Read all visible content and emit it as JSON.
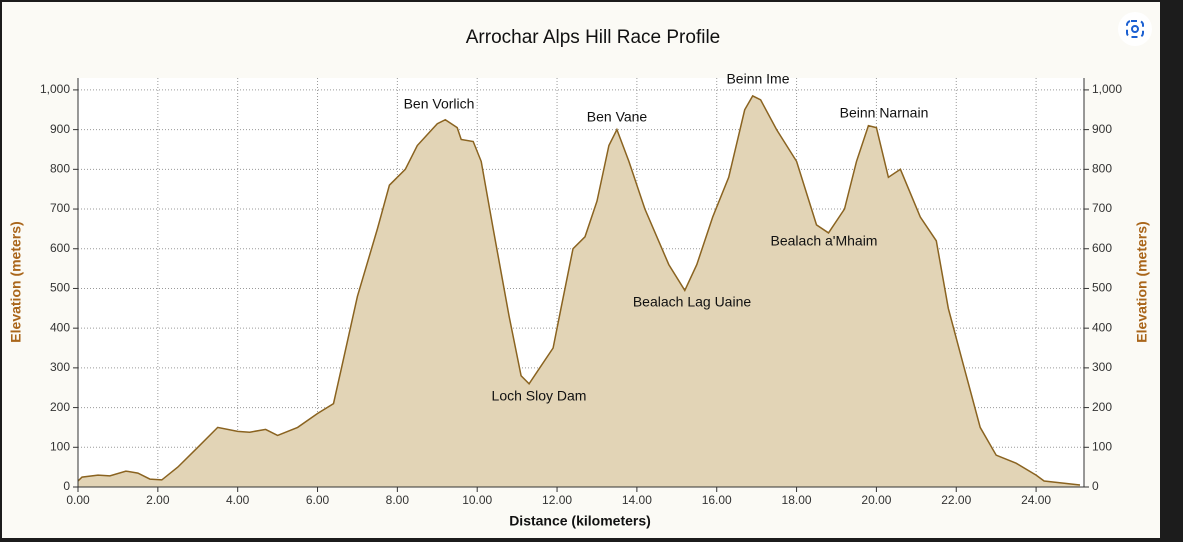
{
  "chart_data": {
    "type": "area",
    "title": "Arrochar Alps Hill Race Profile",
    "x_label": "Distance (kilometers)",
    "y_label": "Elevation (meters)",
    "y2_label": "Elevation (meters)",
    "x": [
      0,
      0.1,
      0.5,
      0.8,
      1.2,
      1.5,
      1.8,
      2.1,
      2.5,
      3.0,
      3.5,
      4.0,
      4.3,
      4.7,
      5.0,
      5.5,
      6.0,
      6.4,
      6.6,
      7.0,
      7.5,
      7.8,
      8.2,
      8.5,
      9.0,
      9.2,
      9.5,
      9.6,
      9.9,
      10.1,
      10.4,
      10.8,
      11.1,
      11.3,
      11.5,
      11.9,
      12.1,
      12.4,
      12.7,
      13.0,
      13.3,
      13.5,
      13.8,
      14.2,
      14.8,
      15.2,
      15.5,
      15.9,
      16.3,
      16.7,
      16.9,
      17.1,
      17.5,
      18.0,
      18.5,
      18.8,
      19.2,
      19.5,
      19.8,
      20.0,
      20.3,
      20.6,
      21.1,
      21.5,
      21.8,
      22.2,
      22.6,
      23.0,
      23.5,
      24.0,
      24.2,
      25.1
    ],
    "values": [
      15,
      25,
      30,
      28,
      40,
      35,
      20,
      18,
      50,
      100,
      150,
      140,
      138,
      145,
      130,
      150,
      185,
      210,
      300,
      480,
      650,
      760,
      800,
      860,
      915,
      925,
      905,
      875,
      870,
      820,
      650,
      430,
      280,
      260,
      290,
      350,
      450,
      600,
      630,
      720,
      860,
      900,
      820,
      700,
      560,
      495,
      560,
      680,
      780,
      950,
      985,
      975,
      900,
      820,
      660,
      640,
      700,
      820,
      910,
      905,
      780,
      800,
      680,
      620,
      450,
      300,
      150,
      80,
      60,
      30,
      15,
      5
    ],
    "color": "#8a6320",
    "fill_color": "#e2d4b6",
    "xlim": [
      0,
      25.2
    ],
    "ylim": [
      0,
      1030
    ],
    "y2lim": [
      0,
      1030
    ],
    "xticks": [
      {
        "value": 0,
        "label": "0.00"
      },
      {
        "value": 2,
        "label": "2.00"
      },
      {
        "value": 4,
        "label": "4.00"
      },
      {
        "value": 6,
        "label": "6.00"
      },
      {
        "value": 8,
        "label": "8.00"
      },
      {
        "value": 10,
        "label": "10.00"
      },
      {
        "value": 12,
        "label": "12.00"
      },
      {
        "value": 14,
        "label": "14.00"
      },
      {
        "value": 16,
        "label": "16.00"
      },
      {
        "value": 18,
        "label": "18.00"
      },
      {
        "value": 20,
        "label": "20.00"
      },
      {
        "value": 22,
        "label": "22.00"
      },
      {
        "value": 24,
        "label": "24.00"
      }
    ],
    "yticks": [
      0,
      100,
      200,
      300,
      400,
      500,
      600,
      700,
      800,
      900,
      {
        "value": 1000,
        "label": "1,000"
      }
    ],
    "y2ticks": [
      0,
      100,
      200,
      300,
      400,
      500,
      600,
      700,
      800,
      900,
      {
        "value": 1000,
        "label": "1,000"
      }
    ],
    "grid": true,
    "annotations": [
      "Ben Vorlich",
      "Ben Vane",
      "Beinn Ime",
      "Beinn Narnain",
      "Bealach a'Mhaim",
      "Bealach Lag Uaine",
      "Loch Sloy Dam"
    ]
  }
}
